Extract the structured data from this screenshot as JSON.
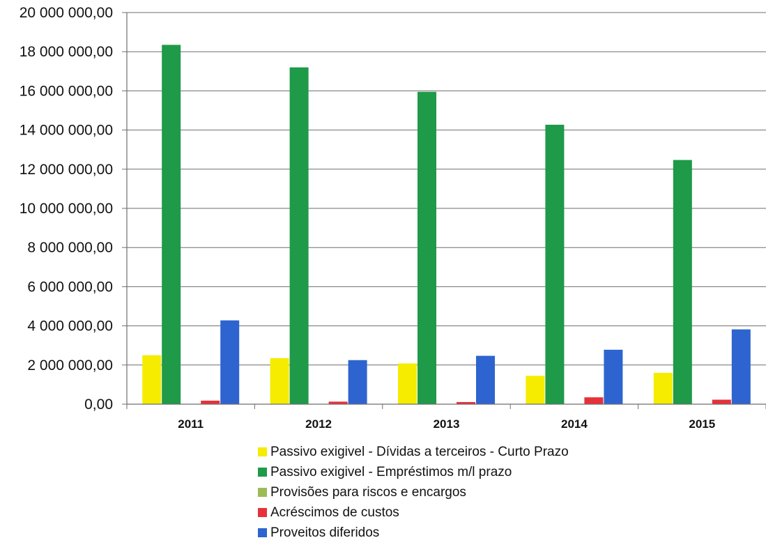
{
  "chart_data": {
    "type": "bar",
    "categories": [
      "2011",
      "2012",
      "2013",
      "2014",
      "2015"
    ],
    "ylim": [
      0,
      20000000
    ],
    "yticks": [
      0,
      2000000,
      4000000,
      6000000,
      8000000,
      10000000,
      12000000,
      14000000,
      16000000,
      18000000,
      20000000
    ],
    "ytick_labels": [
      "0,00",
      "2 000 000,00",
      "4 000 000,00",
      "6 000 000,00",
      "8 000 000,00",
      "10 000 000,00",
      "12 000 000,00",
      "14 000 000,00",
      "16 000 000,00",
      "18 000 000,00",
      "20 000 000,00"
    ],
    "grid": true,
    "legend_position": "bottom",
    "series": [
      {
        "name": "Passivo exigivel - Dívidas a terceiros - Curto Prazo",
        "color": "#f5ec00",
        "values": [
          2500000,
          2350000,
          2080000,
          1450000,
          1600000
        ]
      },
      {
        "name": "Passivo exigivel - Empréstimos m/l prazo",
        "color": "#1e9a48",
        "values": [
          18350000,
          17200000,
          15950000,
          14270000,
          12470000
        ]
      },
      {
        "name": "Provisões para riscos e encargos",
        "color": "#9bbb59",
        "values": [
          0,
          0,
          0,
          0,
          0
        ]
      },
      {
        "name": "Acréscimos de custos",
        "color": "#e8303a",
        "values": [
          180000,
          130000,
          110000,
          350000,
          230000
        ]
      },
      {
        "name": "Proveitos diferidos",
        "color": "#2e64d0",
        "values": [
          4280000,
          2250000,
          2470000,
          2780000,
          3820000
        ]
      }
    ]
  }
}
